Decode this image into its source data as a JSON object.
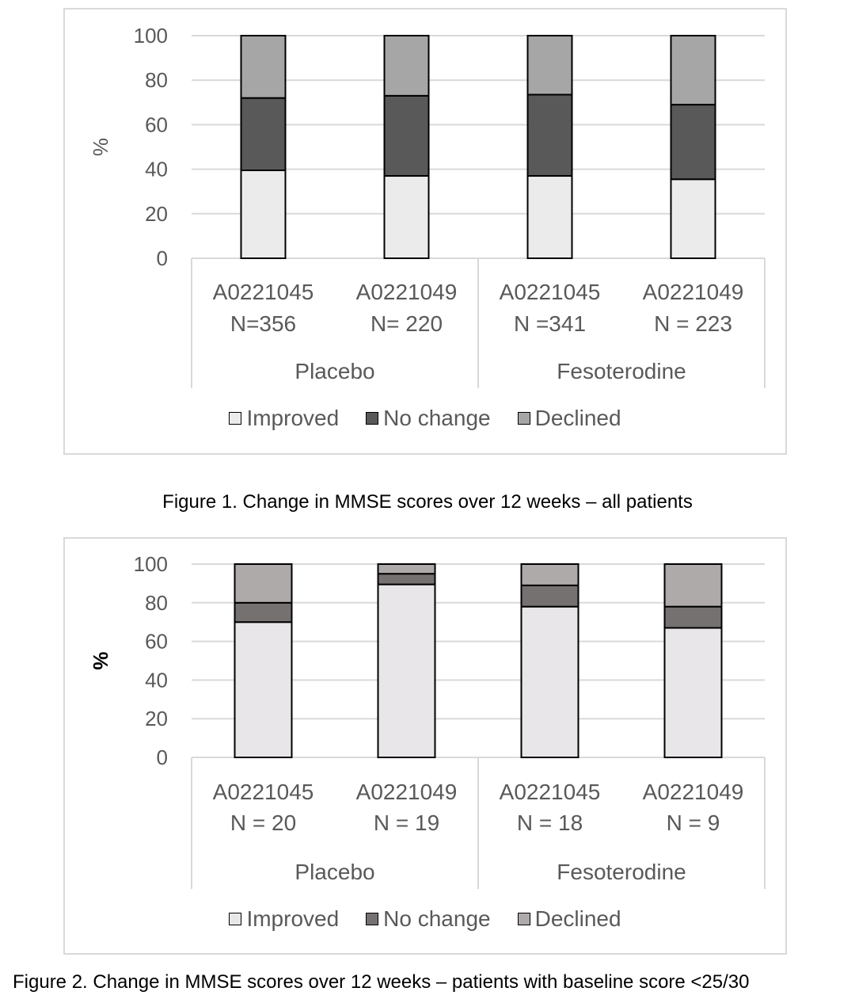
{
  "chart_data": [
    {
      "type": "bar",
      "stacked": true,
      "ylabel": "%",
      "ylim": [
        0,
        100
      ],
      "yticks": [
        0,
        20,
        40,
        60,
        80,
        100
      ],
      "grid": true,
      "legend_position": "bottom",
      "groups": [
        {
          "label": "Placebo",
          "categories": [
            "A0221045\nN=356",
            "A0221049\nN= 220"
          ]
        },
        {
          "label": "Fesoterodine",
          "categories": [
            "A0221045\nN =341",
            "A0221049\nN = 223"
          ]
        }
      ],
      "categories": [
        {
          "line1": "A0221045",
          "line2": "N=356"
        },
        {
          "line1": "A0221049",
          "line2": "N= 220"
        },
        {
          "line1": "A0221045",
          "line2": "N =341"
        },
        {
          "line1": "A0221049",
          "line2": "N = 223"
        }
      ],
      "group_labels": [
        "Placebo",
        "Fesoterodine"
      ],
      "series": [
        {
          "name": "Improved",
          "color": "#ebebeb",
          "values": [
            39.5,
            37,
            37,
            35.5
          ]
        },
        {
          "name": "No change",
          "color": "#595959",
          "values": [
            32.5,
            36,
            36.5,
            33.5
          ]
        },
        {
          "name": "Declined",
          "color": "#a6a6a6",
          "values": [
            28,
            27,
            26.5,
            31
          ]
        }
      ],
      "caption": "Figure 1. Change in MMSE scores over 12 weeks – all patients"
    },
    {
      "type": "bar",
      "stacked": true,
      "ylabel": "%",
      "ylim": [
        0,
        100
      ],
      "yticks": [
        0,
        20,
        40,
        60,
        80,
        100
      ],
      "grid": true,
      "legend_position": "bottom",
      "categories": [
        {
          "line1": "A0221045",
          "line2": "N = 20"
        },
        {
          "line1": "A0221049",
          "line2": "N = 19"
        },
        {
          "line1": "A0221045",
          "line2": "N = 18"
        },
        {
          "line1": "A0221049",
          "line2": "N = 9"
        }
      ],
      "group_labels": [
        "Placebo",
        "Fesoterodine"
      ],
      "series": [
        {
          "name": "Improved",
          "color": "#e8e6e8",
          "values": [
            70,
            89.5,
            78,
            67
          ]
        },
        {
          "name": "No change",
          "color": "#767171",
          "values": [
            10,
            5.5,
            11,
            11
          ]
        },
        {
          "name": "Declined",
          "color": "#aeaaaa",
          "values": [
            20,
            5,
            11,
            22
          ]
        }
      ],
      "caption": "Figure 2.  Change in MMSE scores over 12 weeks – patients with baseline score <25/30"
    }
  ]
}
